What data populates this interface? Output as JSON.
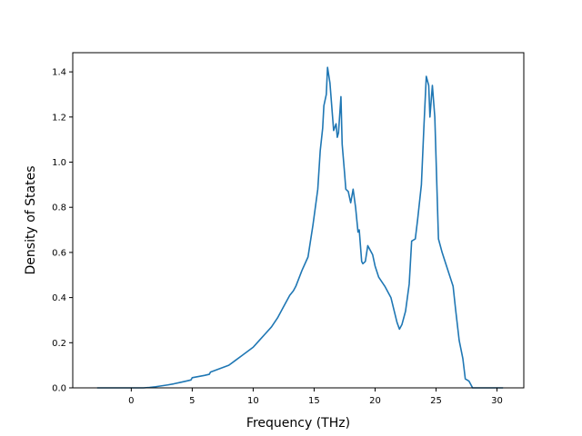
{
  "chart_data": {
    "type": "line",
    "title": "",
    "xlabel": "Frequency (THz)",
    "ylabel": "Density of States",
    "xlim": [
      -4.8,
      32.2
    ],
    "ylim": [
      0.0,
      1.485
    ],
    "xticks": [
      0,
      5,
      10,
      15,
      20,
      25,
      30
    ],
    "xtick_labels": [
      "0",
      "5",
      "10",
      "15",
      "20",
      "25",
      "30"
    ],
    "yticks": [
      0.0,
      0.2,
      0.4,
      0.6,
      0.8,
      1.0,
      1.2,
      1.4
    ],
    "ytick_labels": [
      "0.0",
      "0.2",
      "0.4",
      "0.6",
      "0.8",
      "1.0",
      "1.2",
      "1.4"
    ],
    "grid": false,
    "legend": "none",
    "series": [
      {
        "color": "#1f77b4",
        "x": [
          -2.8,
          -1,
          0,
          1,
          1.5,
          2,
          2.5,
          3,
          3.5,
          4,
          4.5,
          4.9,
          5.0,
          5.5,
          6.0,
          6.4,
          6.5,
          7.0,
          7.5,
          8.0,
          8.5,
          9.0,
          9.5,
          10.0,
          10.5,
          11.0,
          11.5,
          12.0,
          12.5,
          13.0,
          13.3,
          13.5,
          14.0,
          14.5,
          14.9,
          15.1,
          15.3,
          15.5,
          15.7,
          15.8,
          16.0,
          16.1,
          16.3,
          16.6,
          16.8,
          16.9,
          17.0,
          17.2,
          17.3,
          17.5,
          17.6,
          17.8,
          18.0,
          18.2,
          18.4,
          18.6,
          18.7,
          18.9,
          19.0,
          19.2,
          19.4,
          19.5,
          19.8,
          20.0,
          20.3,
          20.8,
          21.3,
          21.8,
          22.0,
          22.2,
          22.5,
          22.8,
          23.0,
          23.3,
          23.5,
          23.8,
          24.0,
          24.2,
          24.4,
          24.5,
          24.7,
          24.9,
          25.2,
          25.5,
          25.8,
          26.1,
          26.4,
          26.6,
          26.9,
          27.2,
          27.4,
          27.7,
          28,
          29,
          30.5
        ],
        "y": [
          0.0,
          0.0,
          0.0,
          0.0,
          0.002,
          0.005,
          0.009,
          0.013,
          0.018,
          0.024,
          0.03,
          0.035,
          0.045,
          0.05,
          0.055,
          0.06,
          0.07,
          0.08,
          0.09,
          0.1,
          0.12,
          0.14,
          0.16,
          0.18,
          0.21,
          0.24,
          0.27,
          0.31,
          0.36,
          0.41,
          0.43,
          0.45,
          0.52,
          0.58,
          0.72,
          0.8,
          0.88,
          1.05,
          1.15,
          1.25,
          1.3,
          1.42,
          1.35,
          1.14,
          1.17,
          1.11,
          1.13,
          1.29,
          1.08,
          0.95,
          0.88,
          0.87,
          0.82,
          0.88,
          0.8,
          0.69,
          0.7,
          0.56,
          0.55,
          0.56,
          0.63,
          0.62,
          0.59,
          0.54,
          0.49,
          0.45,
          0.4,
          0.29,
          0.26,
          0.28,
          0.34,
          0.46,
          0.65,
          0.66,
          0.75,
          0.9,
          1.15,
          1.38,
          1.34,
          1.2,
          1.34,
          1.2,
          0.66,
          0.6,
          0.55,
          0.5,
          0.45,
          0.35,
          0.21,
          0.13,
          0.04,
          0.03,
          0.0,
          0.0,
          0.0
        ]
      }
    ]
  }
}
